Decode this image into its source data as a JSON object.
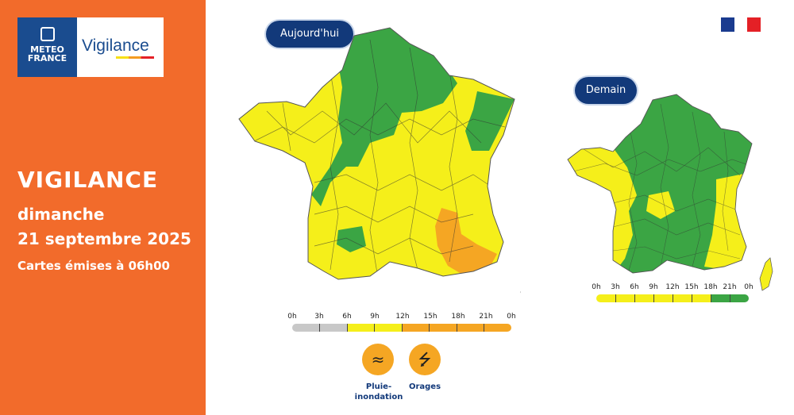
{
  "brand": {
    "meteo_line1": "METEO",
    "meteo_line2": "FRANCE",
    "vigilance": "Vigilance"
  },
  "headline": {
    "title": "VIGILANCE",
    "day": "dimanche",
    "date": "21 septembre 2025",
    "issued": "Cartes émises à 06h00"
  },
  "maps": {
    "today_label": "Aujourd'hui",
    "tomorrow_label": "Demain"
  },
  "timeline_hours": [
    "0h",
    "3h",
    "6h",
    "9h",
    "12h",
    "15h",
    "18h",
    "21h",
    "0h"
  ],
  "hazards": [
    {
      "label": "Pluie-",
      "label2": "inondation",
      "icon": "rain-flood-icon"
    },
    {
      "label": "Orages",
      "icon": "lightning-icon"
    }
  ],
  "colors": {
    "orange_panel": "#f26b2b",
    "navy": "#12397a",
    "green": "#3ba544",
    "yellow": "#f5ef1a",
    "orange": "#f5a623",
    "grey": "#c8c8c8"
  }
}
